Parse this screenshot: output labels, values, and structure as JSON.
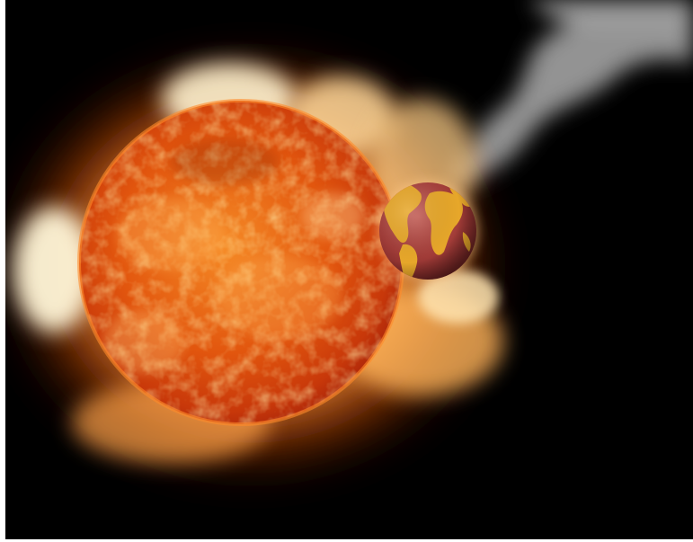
{
  "scene": {
    "subject": "sun-and-earth-illustration",
    "colors": {
      "background_frame": "#ffffff",
      "space": "#000000",
      "sun_core": "#f07a1a",
      "sun_mid": "#d9470a",
      "sun_edge": "#a8240a",
      "corona_bright": "#fff6d8",
      "corona_warm": "#ffb45a",
      "corona_deep": "#e0560f",
      "earth_ocean": "#a43e3a",
      "earth_land": "#e7a72a",
      "smoke": "#bdbdbd"
    },
    "icons": {
      "sun": "sun-icon",
      "earth": "earth-globe-icon",
      "smoke": "smoke-trail"
    }
  }
}
